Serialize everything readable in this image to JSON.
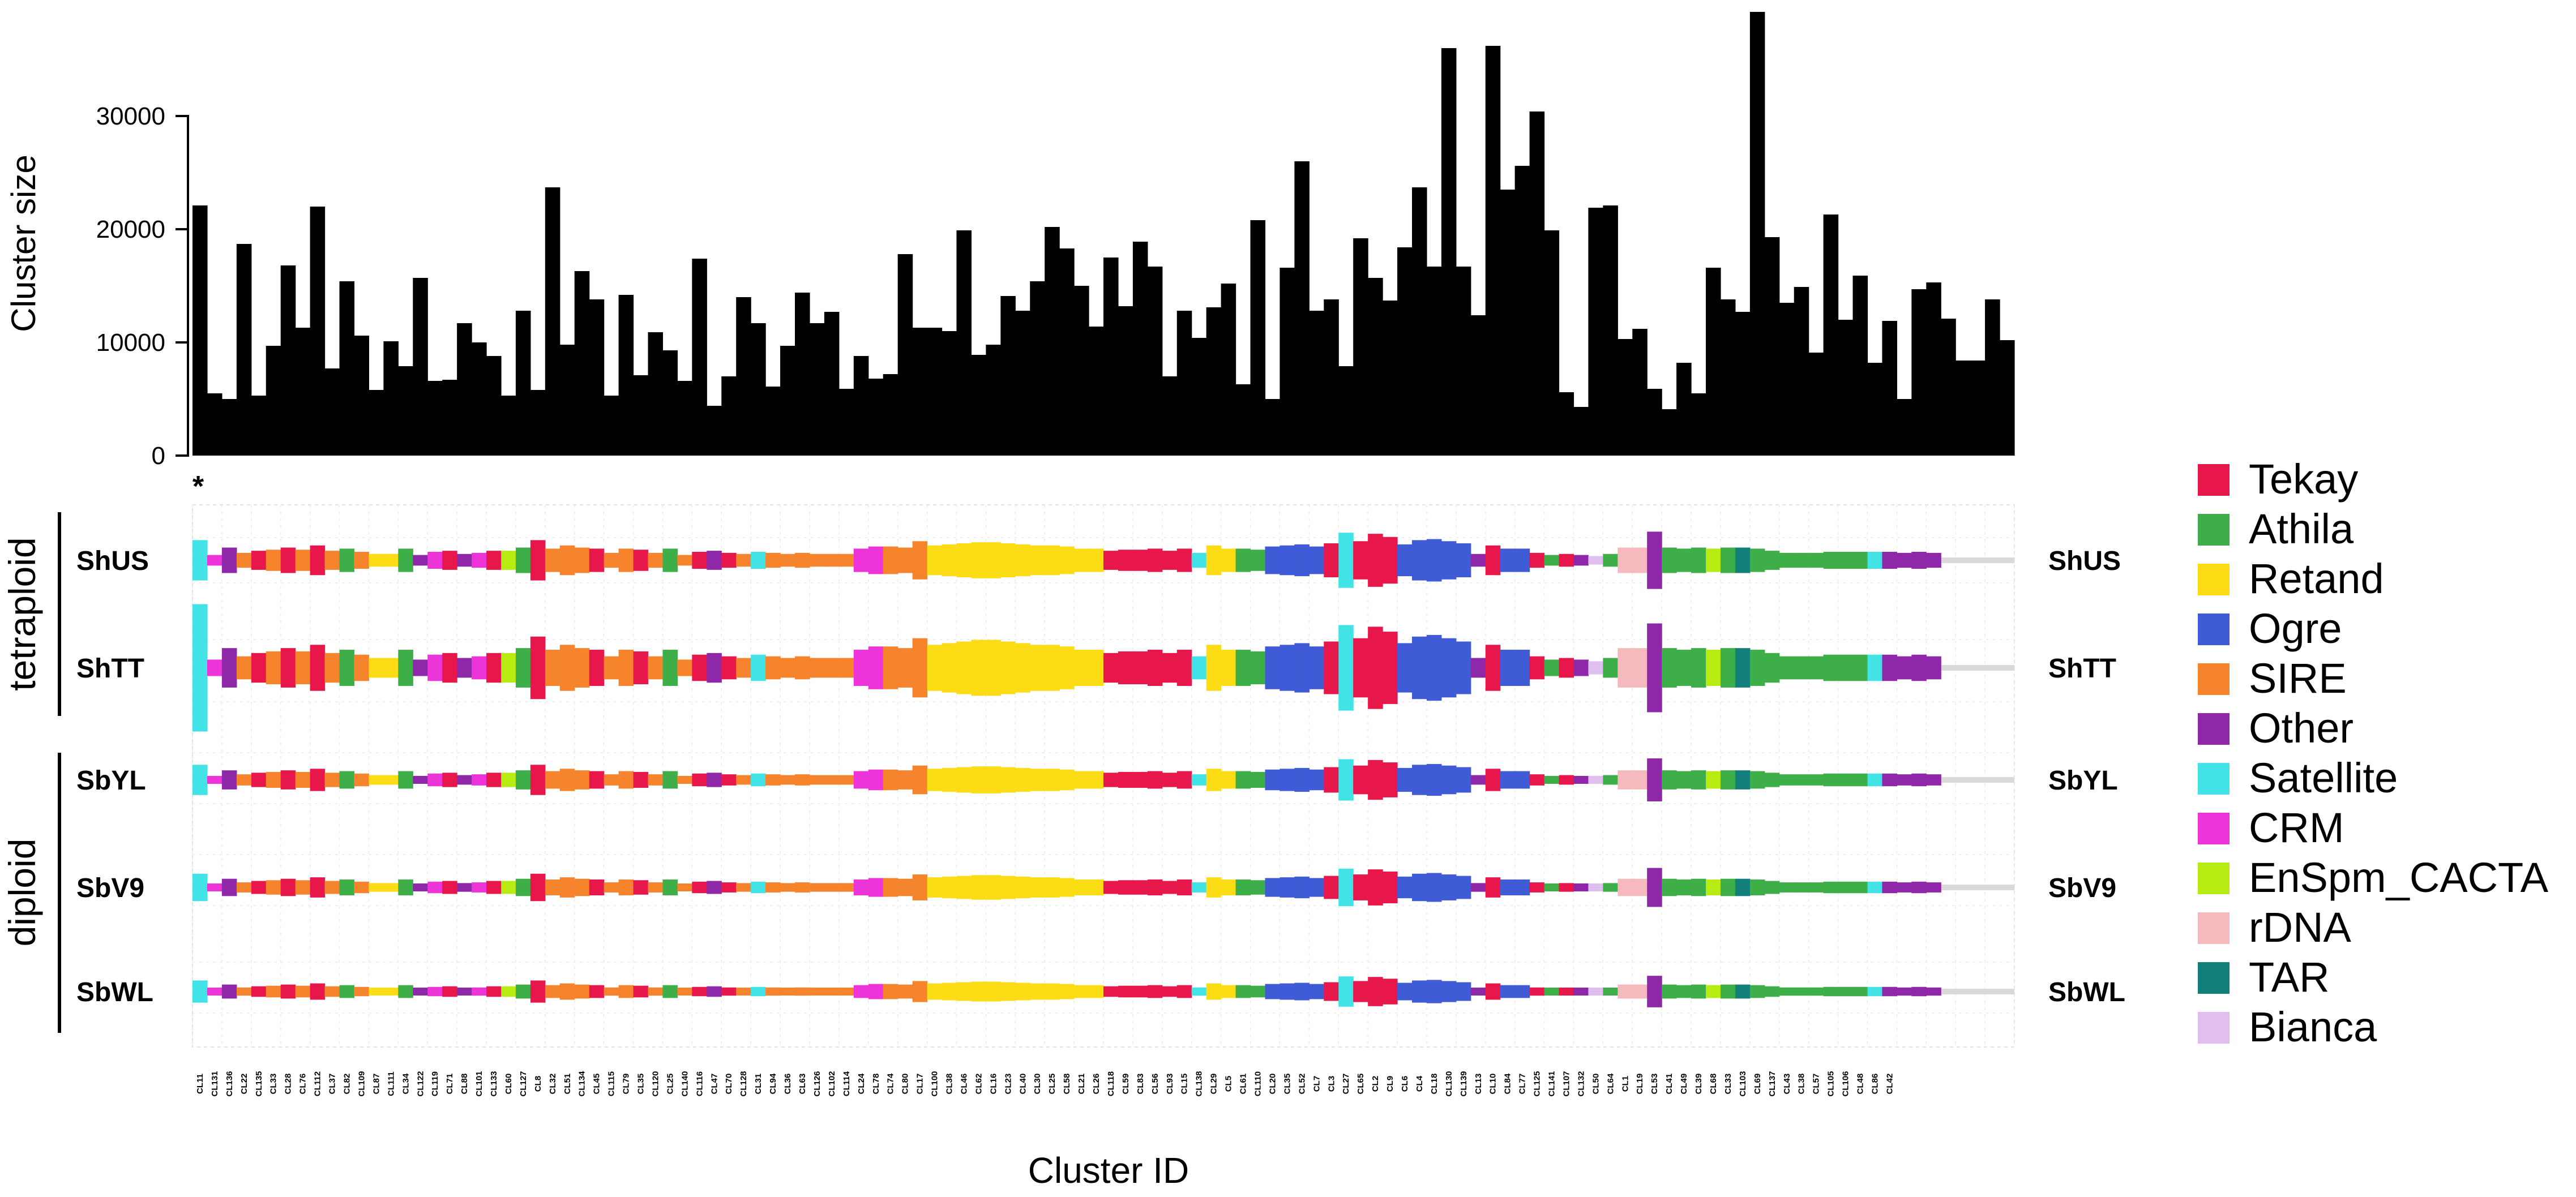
{
  "chart_data": [
    {
      "type": "bar",
      "ylabel": "Cluster size",
      "xlabel": "",
      "ylim": [
        0,
        40000
      ],
      "yticks": [
        0,
        10000,
        20000,
        30000
      ],
      "yticklabels": [
        "0",
        "10000",
        "20000",
        "30000"
      ],
      "values": [
        22100,
        5500,
        5000,
        18700,
        5300,
        9700,
        16800,
        11300,
        22000,
        7700,
        15400,
        10600,
        5800,
        10100,
        7900,
        15700,
        6600,
        6700,
        11700,
        10000,
        8800,
        5300,
        12800,
        5800,
        23700,
        9800,
        16300,
        13800,
        5300,
        14200,
        7100,
        10900,
        9300,
        6600,
        17400,
        4400,
        7000,
        14000,
        11700,
        6100,
        9700,
        14400,
        11700,
        12700,
        5900,
        8800,
        6800,
        7200,
        17800,
        11300,
        11300,
        11000,
        19900,
        8900,
        9800,
        14100,
        12800,
        15400,
        20200,
        18300,
        15000,
        11400,
        17500,
        13200,
        18900,
        16700,
        7000,
        12800,
        10400,
        13100,
        15200,
        6300,
        20800,
        5000,
        16600,
        26000,
        12800,
        13800,
        7900,
        19200,
        15700,
        13700,
        18400,
        23700,
        16700,
        36000,
        16700,
        12400,
        36200,
        23500,
        25600,
        30400,
        19900,
        5600,
        4300,
        21900,
        22100,
        10300,
        11200,
        5900,
        4100,
        8200,
        5500,
        16600,
        13800,
        12700,
        39200,
        19300,
        13500,
        14900,
        9100,
        21300,
        12000,
        15900,
        8200,
        11900,
        5000,
        14700,
        15300,
        12100,
        8400,
        8400,
        13800,
        10200
      ]
    },
    {
      "type": "heatmap",
      "xlabel": "Cluster ID",
      "group_labels": [
        "tetraploid",
        "diploid"
      ],
      "samples": [
        "ShUS",
        "ShTT",
        "SbYL",
        "SbV9",
        "SbWL"
      ],
      "asterisk": "*",
      "categories": [
        "CL11",
        "CL131",
        "CL136",
        "CL22",
        "CL135",
        "CL33",
        "CL28",
        "CL76",
        "CL112",
        "CL37",
        "CL82",
        "CL109",
        "CL87",
        "CL111",
        "CL34",
        "CL122",
        "CL119",
        "CL71",
        "CL88",
        "CL101",
        "CL133",
        "CL60",
        "CL127",
        "CL8",
        "CL32",
        "CL51",
        "CL134",
        "CL45",
        "CL115",
        "CL79",
        "CL35",
        "CL120",
        "CL25",
        "CL140",
        "CL116",
        "CL47",
        "CL70",
        "CL128",
        "CL31",
        "CL94",
        "CL36",
        "CL63",
        "CL126",
        "CL102",
        "CL114",
        "CL24",
        "CL78",
        "CL74",
        "CL80",
        "CL17",
        "CL100",
        "CL38",
        "CL46",
        "CL62",
        "CL16",
        "CL23",
        "CL40",
        "CL30",
        "CL25",
        "CL58",
        "CL21",
        "CL26",
        "CL118",
        "CL59",
        "CL83",
        "CL56",
        "CL93",
        "CL15",
        "CL138",
        "CL29",
        "CL5",
        "CL61",
        "CL110",
        "CL20",
        "CL35",
        "CL52",
        "CL7",
        "CL3",
        "CL27",
        "CL65",
        "CL2",
        "CL9",
        "CL6",
        "CL4",
        "CL18",
        "CL130",
        "CL139",
        "CL13",
        "CL10",
        "CL84",
        "CL77",
        "CL125",
        "CL141",
        "CL107",
        "CL132",
        "CL50",
        "CL64",
        "CL1",
        "CL19",
        "CL53",
        "CL41",
        "CL49",
        "CL39",
        "CL68",
        "CL33",
        "CL103",
        "CL69",
        "CL137",
        "CL43",
        "CL38",
        "CL57",
        "CL105",
        "CL106",
        "CL48",
        "CL86",
        "CL42"
      ],
      "families": [
        "Satellite",
        "CRM",
        "Other",
        "SIRE",
        "Tekay",
        "SIRE",
        "Tekay",
        "SIRE",
        "Tekay",
        "SIRE",
        "Athila",
        "SIRE",
        "Retand",
        "Retand",
        "Athila",
        "Other",
        "CRM",
        "Tekay",
        "Other",
        "CRM",
        "Tekay",
        "EnSpm_CACTA",
        "Athila",
        "Tekay",
        "SIRE",
        "SIRE",
        "SIRE",
        "Tekay",
        "SIRE",
        "SIRE",
        "Tekay",
        "SIRE",
        "Athila",
        "SIRE",
        "Tekay",
        "Other",
        "Tekay",
        "SIRE",
        "Satellite",
        "SIRE",
        "SIRE",
        "SIRE",
        "SIRE",
        "SIRE",
        "SIRE",
        "CRM",
        "CRM",
        "SIRE",
        "SIRE",
        "SIRE",
        "Retand",
        "Retand",
        "Retand",
        "Retand",
        "Retand",
        "Retand",
        "Retand",
        "Retand",
        "Retand",
        "Retand",
        "Retand",
        "Retand",
        "Tekay",
        "Tekay",
        "Tekay",
        "Tekay",
        "Tekay",
        "Tekay",
        "Satellite",
        "Retand",
        "Retand",
        "Athila",
        "Athila",
        "Ogre",
        "Ogre",
        "Ogre",
        "Ogre",
        "Tekay",
        "Satellite",
        "Tekay",
        "Tekay",
        "Tekay",
        "Ogre",
        "Ogre",
        "Ogre",
        "Ogre",
        "Ogre",
        "Other",
        "Tekay",
        "Ogre",
        "Ogre",
        "Tekay",
        "Athila",
        "Tekay",
        "Other",
        "Bianca",
        "Athila",
        "rDNA",
        "rDNA",
        "Other",
        "Athila",
        "Athila",
        "Athila",
        "EnSpm_CACTA",
        "Athila",
        "TAR",
        "Athila",
        "Athila",
        "Athila",
        "Athila",
        "Athila",
        "Athila",
        "Athila",
        "Athila",
        "Satellite",
        "Other",
        "Other",
        "Other",
        "Other"
      ],
      "abundance": {
        "ShUS": [
          0.95,
          0.25,
          0.6,
          0.35,
          0.45,
          0.5,
          0.6,
          0.5,
          0.7,
          0.45,
          0.55,
          0.4,
          0.3,
          0.3,
          0.55,
          0.25,
          0.4,
          0.45,
          0.3,
          0.35,
          0.45,
          0.45,
          0.6,
          0.95,
          0.55,
          0.7,
          0.6,
          0.55,
          0.35,
          0.55,
          0.5,
          0.35,
          0.55,
          0.25,
          0.4,
          0.45,
          0.35,
          0.3,
          0.4,
          0.35,
          0.3,
          0.35,
          0.3,
          0.3,
          0.3,
          0.55,
          0.65,
          0.65,
          0.6,
          0.9,
          0.7,
          0.75,
          0.8,
          0.85,
          0.85,
          0.8,
          0.75,
          0.7,
          0.7,
          0.65,
          0.55,
          0.55,
          0.45,
          0.5,
          0.5,
          0.55,
          0.45,
          0.55,
          0.35,
          0.7,
          0.55,
          0.55,
          0.5,
          0.65,
          0.7,
          0.75,
          0.65,
          0.8,
          1.3,
          0.9,
          1.25,
          1.1,
          0.75,
          0.95,
          1.0,
          0.9,
          0.8,
          0.3,
          0.7,
          0.55,
          0.55,
          0.35,
          0.25,
          0.3,
          0.25,
          0.2,
          0.3,
          0.6,
          0.6,
          1.35,
          0.6,
          0.55,
          0.6,
          0.55,
          0.6,
          0.6,
          0.55,
          0.45,
          0.35,
          0.35,
          0.35,
          0.4,
          0.4,
          0.4,
          0.4,
          0.4,
          0.35,
          0.4,
          0.35,
          0.35
        ]
      }
    }
  ],
  "legend": [
    {
      "label": "Tekay",
      "color": "#E8174B"
    },
    {
      "label": "Athila",
      "color": "#3DAE48"
    },
    {
      "label": "Retand",
      "color": "#FCDC15"
    },
    {
      "label": "Ogre",
      "color": "#3F5BD6"
    },
    {
      "label": "SIRE",
      "color": "#F6842D"
    },
    {
      "label": "Other",
      "color": "#8F28A8"
    },
    {
      "label": "Satellite",
      "color": "#41E3E6"
    },
    {
      "label": "CRM",
      "color": "#EC34D8"
    },
    {
      "label": "EnSpm_CACTA",
      "color": "#B8EB12"
    },
    {
      "label": "rDNA",
      "color": "#F6B9BD"
    },
    {
      "label": "TAR",
      "color": "#127F7A"
    },
    {
      "label": "Bianca",
      "color": "#E0BEF0"
    }
  ]
}
